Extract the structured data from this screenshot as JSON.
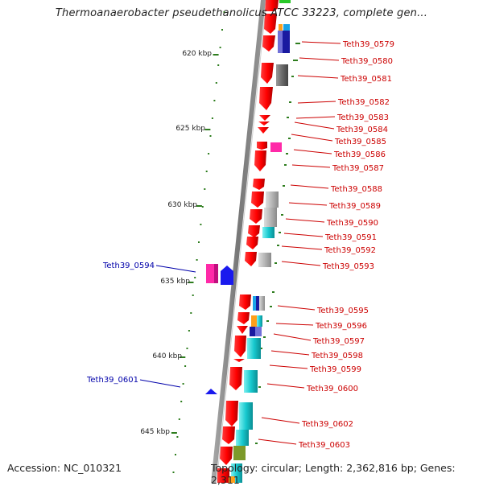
{
  "title": "Thermoanaerobacter pseudethanolicus ATCC 33223, complete gen...",
  "footer": {
    "accession": "Accession: NC_010321",
    "topology": "Topology: circular; Length: 2,362,816 bp; Genes: 2,311"
  },
  "colors": {
    "forward_gene": "#ff0000",
    "reverse_gene": "#ff0000",
    "label_red": "#cc0000",
    "label_blue": "#0000aa",
    "tick_green": "#2e7d1e",
    "backbone": "#888888"
  },
  "scale_labels": [
    "620 kbp",
    "625 kbp",
    "630 kbp",
    "635 kbp",
    "640 kbp",
    "645 kbp"
  ],
  "right_genes": [
    "Teth39_0579",
    "Teth39_0580",
    "Teth39_0581",
    "Teth39_0582",
    "Teth39_0583",
    "Teth39_0584",
    "Teth39_0585",
    "Teth39_0586",
    "Teth39_0587",
    "Teth39_0588",
    "Teth39_0589",
    "Teth39_0590",
    "Teth39_0591",
    "Teth39_0592",
    "Teth39_0593",
    "Teth39_0595",
    "Teth39_0596",
    "Teth39_0597",
    "Teth39_0598",
    "Teth39_0599",
    "Teth39_0600",
    "Teth39_0602",
    "Teth39_0603"
  ],
  "left_genes": [
    "Teth39_0594",
    "Teth39_0601"
  ]
}
